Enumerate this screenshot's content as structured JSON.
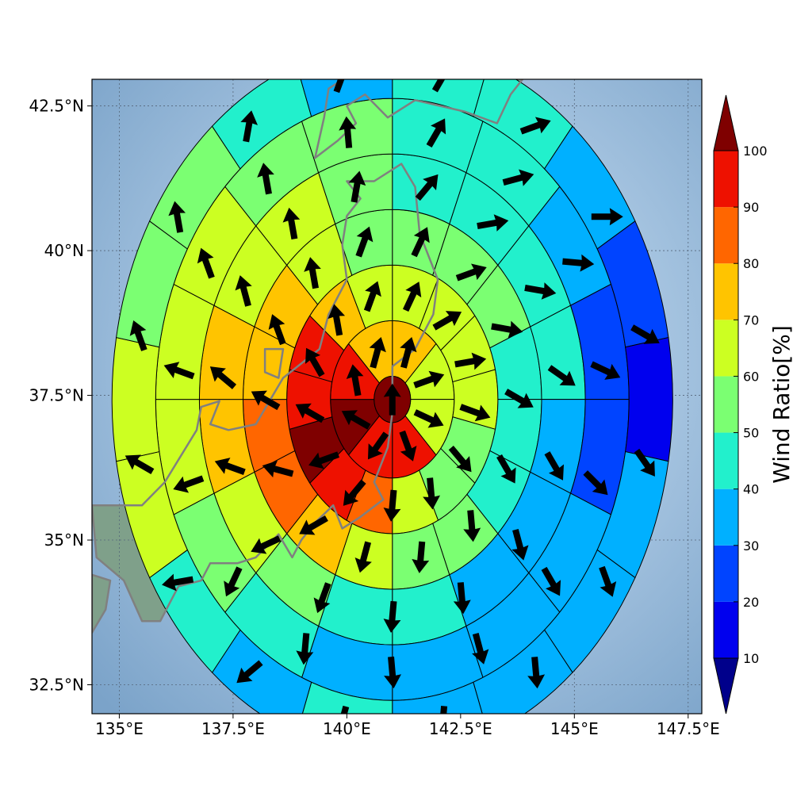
{
  "chart_data": {
    "type": "heatmap",
    "subtype": "polar sector map with wind vectors",
    "x_axis": {
      "range": [
        134.4,
        147.8
      ],
      "ticks": [
        {
          "value": 135,
          "label": "135°E"
        },
        {
          "value": 137.5,
          "label": "137.5°E"
        },
        {
          "value": 140,
          "label": "140°E"
        },
        {
          "value": 142.5,
          "label": "142.5°E"
        },
        {
          "value": 145,
          "label": "145°E"
        },
        {
          "value": 147.5,
          "label": "147.5°E"
        }
      ]
    },
    "y_axis": {
      "range": [
        32,
        42.96
      ],
      "ticks": [
        {
          "value": 32.5,
          "label": "32.5°N"
        },
        {
          "value": 35,
          "label": "35°N"
        },
        {
          "value": 37.5,
          "label": "37.5°N"
        },
        {
          "value": 40,
          "label": "40°N"
        },
        {
          "value": 42.5,
          "label": "42.5°N"
        }
      ]
    },
    "grid": true,
    "center": {
      "lon": 141.0,
      "lat": 37.43
    },
    "center_value": 100,
    "ring_radius_step_deg": 0.96,
    "sector_order": "clockwise from north",
    "rings": [
      {
        "ring": 1,
        "values": [
          70,
          65,
          65,
          90,
          90,
          100,
          90,
          70
        ]
      },
      {
        "ring": 2,
        "values": [
          65,
          65,
          65,
          65,
          55,
          55,
          65,
          80,
          90,
          100,
          90,
          90,
          70,
          65
        ]
      },
      {
        "ring": 3,
        "values": [
          55,
          55,
          55,
          45,
          45,
          45,
          55,
          55,
          65,
          70,
          80,
          80,
          70,
          70,
          65,
          55
        ]
      },
      {
        "ring": 4,
        "values": [
          45,
          45,
          45,
          45,
          35,
          35,
          35,
          45,
          45,
          55,
          65,
          70,
          70,
          65,
          65,
          55
        ]
      },
      {
        "ring": 5,
        "values": [
          45,
          45,
          35,
          25,
          25,
          35,
          35,
          35,
          35,
          45,
          55,
          65,
          65,
          65,
          55,
          55
        ]
      },
      {
        "ring": 6,
        "values": [
          45,
          45,
          35,
          25,
          15,
          35,
          35,
          35,
          35,
          45,
          35,
          45,
          65,
          65,
          55,
          55,
          45,
          35
        ]
      }
    ],
    "arrow_directions_deg_from_north": {
      "center": 0,
      "ring1": [
        15,
        70,
        115,
        160,
        215,
        300,
        350,
        15
      ],
      "ring2": [
        25,
        60,
        80,
        110,
        140,
        175,
        185,
        220,
        250,
        300,
        330,
        350,
        20
      ],
      "ring3": [
        25,
        70,
        100,
        120,
        150,
        175,
        185,
        195,
        240,
        285,
        300,
        340,
        350,
        20
      ],
      "ring4": [
        40,
        80,
        100,
        125,
        150,
        165,
        175,
        185,
        200,
        245,
        290,
        310,
        345,
        350,
        10
      ],
      "ring5": [
        30,
        75,
        95,
        115,
        135,
        150,
        165,
        175,
        185,
        205,
        250,
        290,
        340,
        350,
        355
      ],
      "ring6": [
        30,
        70,
        90,
        120,
        145,
        160,
        175,
        185,
        195,
        230,
        260,
        300,
        340,
        350,
        10,
        20
      ]
    },
    "colorbar": {
      "label": "Wind Ratio[%]",
      "ticks": [
        10,
        20,
        30,
        40,
        50,
        60,
        70,
        80,
        90,
        100
      ],
      "colors": {
        "under": "#00008b",
        "0-10": "#00008b",
        "10-20": "#0000ee",
        "20-30": "#0044ff",
        "30-40": "#00b0ff",
        "40-50": "#22f0cc",
        "50-60": "#7bff72",
        "60-70": "#ccff22",
        "70-80": "#ffc400",
        "80-90": "#ff6600",
        "90-100": "#ee1100",
        "over": "#7f0000"
      },
      "extend": "both"
    },
    "coastline_color": "#808080",
    "sea_color": "#86aacd",
    "land_color": "#7fa08a"
  }
}
